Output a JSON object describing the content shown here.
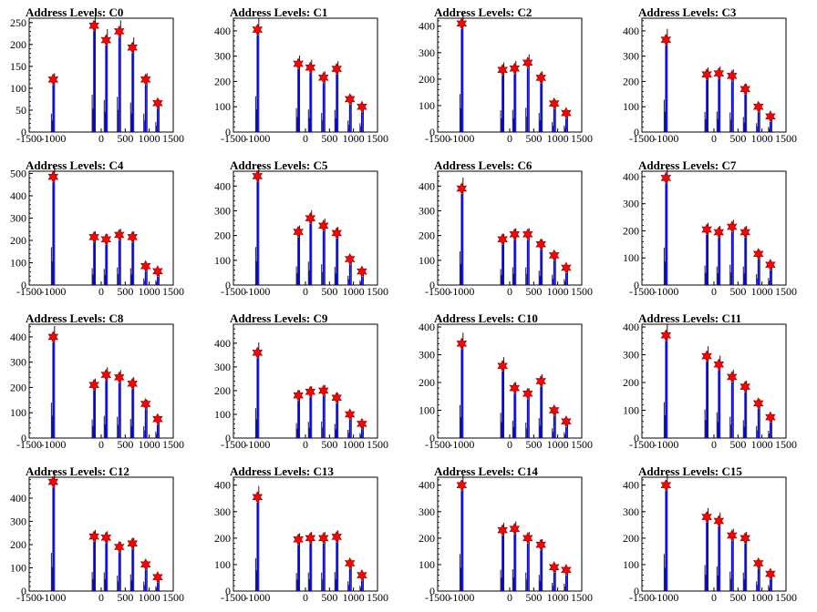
{
  "title_prefix": "Address Levels: ",
  "chart_data": [
    {
      "type": "bar",
      "title": "Address Levels: C0",
      "xlim": [
        -1500,
        1500
      ],
      "ylim": [
        0,
        260
      ],
      "yticks": [
        0,
        50,
        100,
        150,
        200,
        250
      ],
      "xticks": [
        -1500,
        -1000,
        0,
        500,
        1000,
        1500
      ],
      "xtick_labels": [
        "-1500",
        "-1000",
        "0",
        "500",
        "1000",
        "1500"
      ],
      "peaks": [
        {
          "x": -1000,
          "y": 120
        },
        {
          "x": -150,
          "y": 243
        },
        {
          "x": 100,
          "y": 210
        },
        {
          "x": 375,
          "y": 230
        },
        {
          "x": 650,
          "y": 193
        },
        {
          "x": 925,
          "y": 120
        },
        {
          "x": 1175,
          "y": 66
        }
      ]
    },
    {
      "type": "bar",
      "title": "Address Levels: C1",
      "xlim": [
        -1500,
        1500
      ],
      "ylim": [
        0,
        450
      ],
      "yticks": [
        0,
        100,
        200,
        300,
        400
      ],
      "xticks": [
        -1500,
        -1000,
        0,
        500,
        1000,
        1500
      ],
      "xtick_labels": [
        "-1500",
        "-1000",
        "0",
        "500",
        "1000",
        "1500"
      ],
      "peaks": [
        {
          "x": -1000,
          "y": 405
        },
        {
          "x": -150,
          "y": 270
        },
        {
          "x": 100,
          "y": 255
        },
        {
          "x": 375,
          "y": 215
        },
        {
          "x": 650,
          "y": 250
        },
        {
          "x": 925,
          "y": 130
        },
        {
          "x": 1175,
          "y": 100
        }
      ]
    },
    {
      "type": "bar",
      "title": "Address Levels: C2",
      "xlim": [
        -1500,
        1500
      ],
      "ylim": [
        0,
        430
      ],
      "yticks": [
        0,
        100,
        200,
        300,
        400
      ],
      "xticks": [
        -1500,
        -1000,
        0,
        500,
        1000,
        1500
      ],
      "xtick_labels": [
        "-1500",
        "-1000",
        "0",
        "500",
        "1000",
        "1500"
      ],
      "peaks": [
        {
          "x": -1000,
          "y": 410
        },
        {
          "x": -150,
          "y": 235
        },
        {
          "x": 100,
          "y": 240
        },
        {
          "x": 375,
          "y": 262
        },
        {
          "x": 650,
          "y": 205
        },
        {
          "x": 925,
          "y": 108
        },
        {
          "x": 1175,
          "y": 72
        }
      ]
    },
    {
      "type": "bar",
      "title": "Address Levels: C3",
      "xlim": [
        -1500,
        1500
      ],
      "ylim": [
        0,
        450
      ],
      "yticks": [
        0,
        100,
        200,
        300,
        400
      ],
      "xticks": [
        -1500,
        -1000,
        0,
        500,
        1000,
        1500
      ],
      "xtick_labels": [
        "-1500",
        "-1000",
        "0",
        "500",
        "1000",
        "1500"
      ],
      "peaks": [
        {
          "x": -1000,
          "y": 365
        },
        {
          "x": -150,
          "y": 228
        },
        {
          "x": 100,
          "y": 232
        },
        {
          "x": 375,
          "y": 222
        },
        {
          "x": 650,
          "y": 170
        },
        {
          "x": 925,
          "y": 100
        },
        {
          "x": 1175,
          "y": 62
        }
      ]
    },
    {
      "type": "bar",
      "title": "Address Levels: C4",
      "xlim": [
        -1500,
        1500
      ],
      "ylim": [
        0,
        510
      ],
      "yticks": [
        0,
        100,
        200,
        300,
        400,
        500
      ],
      "xticks": [
        -1500,
        -1000,
        0,
        500,
        1000,
        1500
      ],
      "xtick_labels": [
        "-1500",
        "-1000",
        "0",
        "500",
        "1000",
        "1500"
      ],
      "peaks": [
        {
          "x": -1000,
          "y": 485
        },
        {
          "x": -150,
          "y": 215
        },
        {
          "x": 100,
          "y": 205
        },
        {
          "x": 375,
          "y": 225
        },
        {
          "x": 650,
          "y": 215
        },
        {
          "x": 925,
          "y": 85
        },
        {
          "x": 1175,
          "y": 62
        }
      ]
    },
    {
      "type": "bar",
      "title": "Address Levels: C5",
      "xlim": [
        -1500,
        1500
      ],
      "ylim": [
        0,
        460
      ],
      "yticks": [
        0,
        100,
        200,
        300,
        400
      ],
      "xticks": [
        -1500,
        -1000,
        0,
        500,
        1000,
        1500
      ],
      "xtick_labels": [
        "-1500",
        "-1000",
        "0",
        "500",
        "1000",
        "1500"
      ],
      "peaks": [
        {
          "x": -1000,
          "y": 440
        },
        {
          "x": -150,
          "y": 215
        },
        {
          "x": 100,
          "y": 270
        },
        {
          "x": 375,
          "y": 240
        },
        {
          "x": 650,
          "y": 210
        },
        {
          "x": 925,
          "y": 105
        },
        {
          "x": 1175,
          "y": 55
        }
      ]
    },
    {
      "type": "bar",
      "title": "Address Levels: C6",
      "xlim": [
        -1500,
        1500
      ],
      "ylim": [
        0,
        460
      ],
      "yticks": [
        0,
        100,
        200,
        300,
        400
      ],
      "xticks": [
        -1500,
        -1000,
        0,
        500,
        1000,
        1500
      ],
      "xtick_labels": [
        "-1500",
        "-1000",
        "0",
        "500",
        "1000",
        "1500"
      ],
      "peaks": [
        {
          "x": -1000,
          "y": 390
        },
        {
          "x": -150,
          "y": 185
        },
        {
          "x": 100,
          "y": 205
        },
        {
          "x": 375,
          "y": 205
        },
        {
          "x": 650,
          "y": 165
        },
        {
          "x": 925,
          "y": 120
        },
        {
          "x": 1175,
          "y": 70
        }
      ]
    },
    {
      "type": "bar",
      "title": "Address Levels: C7",
      "xlim": [
        -1500,
        1500
      ],
      "ylim": [
        0,
        420
      ],
      "yticks": [
        0,
        100,
        200,
        300,
        400
      ],
      "xticks": [
        -1500,
        -1000,
        0,
        500,
        1000,
        1500
      ],
      "xtick_labels": [
        "-1500",
        "-1000",
        "0",
        "500",
        "1000",
        "1500"
      ],
      "peaks": [
        {
          "x": -1000,
          "y": 395
        },
        {
          "x": -150,
          "y": 205
        },
        {
          "x": 100,
          "y": 195
        },
        {
          "x": 375,
          "y": 215
        },
        {
          "x": 650,
          "y": 195
        },
        {
          "x": 925,
          "y": 115
        },
        {
          "x": 1175,
          "y": 75
        }
      ]
    },
    {
      "type": "bar",
      "title": "Address Levels: C8",
      "xlim": [
        -1500,
        1500
      ],
      "ylim": [
        0,
        450
      ],
      "yticks": [
        0,
        100,
        200,
        300,
        400
      ],
      "xticks": [
        -1500,
        -1000,
        0,
        500,
        1000,
        1500
      ],
      "xtick_labels": [
        "-1500",
        "-1000",
        "0",
        "500",
        "1000",
        "1500"
      ],
      "peaks": [
        {
          "x": -1000,
          "y": 400
        },
        {
          "x": -150,
          "y": 210
        },
        {
          "x": 100,
          "y": 250
        },
        {
          "x": 375,
          "y": 240
        },
        {
          "x": 650,
          "y": 215
        },
        {
          "x": 925,
          "y": 135
        },
        {
          "x": 1175,
          "y": 75
        }
      ]
    },
    {
      "type": "bar",
      "title": "Address Levels: C9",
      "xlim": [
        -1500,
        1500
      ],
      "ylim": [
        0,
        480
      ],
      "yticks": [
        0,
        100,
        200,
        300,
        400
      ],
      "xticks": [
        -1500,
        -1000,
        0,
        500,
        1000,
        1500
      ],
      "xtick_labels": [
        "-1500",
        "-1000",
        "0",
        "500",
        "1000",
        "1500"
      ],
      "peaks": [
        {
          "x": -1000,
          "y": 360
        },
        {
          "x": -150,
          "y": 180
        },
        {
          "x": 100,
          "y": 195
        },
        {
          "x": 375,
          "y": 200
        },
        {
          "x": 650,
          "y": 170
        },
        {
          "x": 925,
          "y": 100
        },
        {
          "x": 1175,
          "y": 60
        }
      ]
    },
    {
      "type": "bar",
      "title": "Address Levels: C10",
      "xlim": [
        -1500,
        1500
      ],
      "ylim": [
        0,
        410
      ],
      "yticks": [
        0,
        100,
        200,
        300,
        400
      ],
      "xticks": [
        -1500,
        -1000,
        0,
        500,
        1000,
        1500
      ],
      "xtick_labels": [
        "-1500",
        "-1000",
        "0",
        "500",
        "1000",
        "1500"
      ],
      "peaks": [
        {
          "x": -1000,
          "y": 340
        },
        {
          "x": -150,
          "y": 260
        },
        {
          "x": 100,
          "y": 180
        },
        {
          "x": 375,
          "y": 160
        },
        {
          "x": 650,
          "y": 205
        },
        {
          "x": 925,
          "y": 100
        },
        {
          "x": 1175,
          "y": 60
        }
      ]
    },
    {
      "type": "bar",
      "title": "Address Levels: C11",
      "xlim": [
        -1500,
        1500
      ],
      "ylim": [
        0,
        410
      ],
      "yticks": [
        0,
        100,
        200,
        300,
        400
      ],
      "xticks": [
        -1500,
        -1000,
        0,
        500,
        1000,
        1500
      ],
      "xtick_labels": [
        "-1500",
        "-1000",
        "0",
        "500",
        "1000",
        "1500"
      ],
      "peaks": [
        {
          "x": -1000,
          "y": 370
        },
        {
          "x": -150,
          "y": 295
        },
        {
          "x": 100,
          "y": 265
        },
        {
          "x": 375,
          "y": 220
        },
        {
          "x": 650,
          "y": 185
        },
        {
          "x": 925,
          "y": 125
        },
        {
          "x": 1175,
          "y": 75
        }
      ]
    },
    {
      "type": "bar",
      "title": "Address Levels: C12",
      "xlim": [
        -1500,
        1500
      ],
      "ylim": [
        0,
        490
      ],
      "yticks": [
        0,
        100,
        200,
        300,
        400
      ],
      "xticks": [
        -1500,
        -1000,
        0,
        500,
        1000,
        1500
      ],
      "xtick_labels": [
        "-1500",
        "-1000",
        "0",
        "500",
        "1000",
        "1500"
      ],
      "peaks": [
        {
          "x": -1000,
          "y": 470
        },
        {
          "x": -150,
          "y": 235
        },
        {
          "x": 100,
          "y": 230
        },
        {
          "x": 375,
          "y": 190
        },
        {
          "x": 650,
          "y": 205
        },
        {
          "x": 925,
          "y": 115
        },
        {
          "x": 1175,
          "y": 60
        }
      ]
    },
    {
      "type": "bar",
      "title": "Address Levels: C13",
      "xlim": [
        -1500,
        1500
      ],
      "ylim": [
        0,
        430
      ],
      "yticks": [
        0,
        100,
        200,
        300,
        400
      ],
      "xticks": [
        -1500,
        -1000,
        0,
        500,
        1000,
        1500
      ],
      "xtick_labels": [
        "-1500",
        "-1000",
        "0",
        "500",
        "1000",
        "1500"
      ],
      "peaks": [
        {
          "x": -1000,
          "y": 355
        },
        {
          "x": -150,
          "y": 195
        },
        {
          "x": 100,
          "y": 200
        },
        {
          "x": 375,
          "y": 200
        },
        {
          "x": 650,
          "y": 205
        },
        {
          "x": 925,
          "y": 105
        },
        {
          "x": 1175,
          "y": 60
        }
      ]
    },
    {
      "type": "bar",
      "title": "Address Levels: C14",
      "xlim": [
        -1500,
        1500
      ],
      "ylim": [
        0,
        430
      ],
      "yticks": [
        0,
        100,
        200,
        300,
        400
      ],
      "xticks": [
        -1500,
        -1000,
        0,
        500,
        1000,
        1500
      ],
      "xtick_labels": [
        "-1500",
        "-1000",
        "0",
        "500",
        "1000",
        "1500"
      ],
      "peaks": [
        {
          "x": -1000,
          "y": 400
        },
        {
          "x": -150,
          "y": 230
        },
        {
          "x": 100,
          "y": 235
        },
        {
          "x": 375,
          "y": 200
        },
        {
          "x": 650,
          "y": 175
        },
        {
          "x": 925,
          "y": 90
        },
        {
          "x": 1175,
          "y": 80
        }
      ]
    },
    {
      "type": "bar",
      "title": "Address Levels: C15",
      "xlim": [
        -1500,
        1500
      ],
      "ylim": [
        0,
        430
      ],
      "yticks": [
        0,
        100,
        200,
        300,
        400
      ],
      "xticks": [
        -1500,
        -1000,
        0,
        500,
        1000,
        1500
      ],
      "xtick_labels": [
        "-1500",
        "-1000",
        "0",
        "500",
        "1000",
        "1500"
      ],
      "peaks": [
        {
          "x": -1000,
          "y": 400
        },
        {
          "x": -150,
          "y": 280
        },
        {
          "x": 100,
          "y": 265
        },
        {
          "x": 375,
          "y": 210
        },
        {
          "x": 650,
          "y": 200
        },
        {
          "x": 925,
          "y": 105
        },
        {
          "x": 1175,
          "y": 65
        }
      ]
    }
  ],
  "colors": {
    "histogram": "#0000ff",
    "spike": "#000000",
    "marker_fill": "#ff0000",
    "marker_stroke": "#8b0000",
    "axis": "#000000"
  }
}
